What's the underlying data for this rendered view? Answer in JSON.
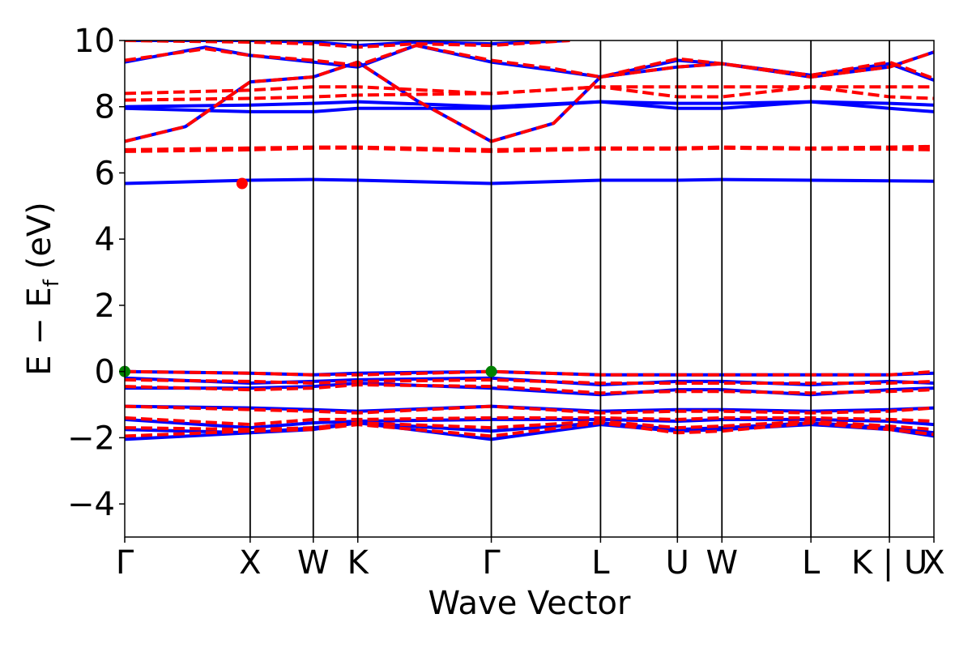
{
  "chart_data": {
    "type": "line",
    "title": "",
    "xlabel": "Wave Vector",
    "ylabel": "E − E",
    "ylabel_subscript": "f",
    "ylabel_unit": " (eV)",
    "ylim": [
      -5,
      10
    ],
    "yticks": [
      -4,
      -2,
      0,
      2,
      4,
      6,
      8,
      10
    ],
    "ytick_labels": [
      "−4",
      "−2",
      "0",
      "2",
      "4",
      "6",
      "8",
      "10"
    ],
    "xlim": [
      0,
      1
    ],
    "kpoints": [
      {
        "label": "Γ",
        "x": 0.0
      },
      {
        "label": "X",
        "x": 0.155
      },
      {
        "label": "W",
        "x": 0.233
      },
      {
        "label": "K",
        "x": 0.288
      },
      {
        "label": "Γ",
        "x": 0.453
      },
      {
        "label": "L",
        "x": 0.588
      },
      {
        "label": "U",
        "x": 0.683
      },
      {
        "label": "W",
        "x": 0.738
      },
      {
        "label": "L",
        "x": 0.848
      },
      {
        "label": "K | U",
        "x": 0.945
      },
      {
        "label": "X",
        "x": 1.0
      }
    ],
    "series": [
      {
        "style": "solid",
        "color": "#0000ff",
        "bands": [
          {
            "x": [
              0,
              0.155,
              0.233,
              0.288,
              0.453,
              0.588,
              0.683,
              0.738,
              0.848,
              0.945,
              1
            ],
            "y": [
              -2.05,
              -1.85,
              -1.7,
              -1.55,
              -2.05,
              -1.6,
              -1.8,
              -1.75,
              -1.6,
              -1.75,
              -1.95
            ]
          },
          {
            "x": [
              0,
              0.155,
              0.233,
              0.288,
              0.453,
              0.588,
              0.683,
              0.738,
              0.848,
              0.945,
              1
            ],
            "y": [
              -1.75,
              -1.85,
              -1.75,
              -1.55,
              -1.8,
              -1.55,
              -1.75,
              -1.7,
              -1.55,
              -1.7,
              -1.85
            ]
          },
          {
            "x": [
              0,
              0.155,
              0.233,
              0.288,
              0.453,
              0.588,
              0.683,
              0.738,
              0.848,
              0.945,
              1
            ],
            "y": [
              -1.45,
              -1.7,
              -1.55,
              -1.5,
              -1.45,
              -1.45,
              -1.5,
              -1.45,
              -1.45,
              -1.5,
              -1.6
            ]
          },
          {
            "x": [
              0,
              0.155,
              0.233,
              0.288,
              0.453,
              0.588,
              0.683,
              0.738,
              0.848,
              0.945,
              1
            ],
            "y": [
              -1.05,
              -1.1,
              -1.15,
              -1.2,
              -1.05,
              -1.2,
              -1.15,
              -1.15,
              -1.2,
              -1.15,
              -1.1
            ]
          },
          {
            "x": [
              0,
              0.155,
              0.233,
              0.288,
              0.453,
              0.588,
              0.683,
              0.738,
              0.848,
              0.945,
              1
            ],
            "y": [
              -0.5,
              -0.5,
              -0.45,
              -0.35,
              -0.5,
              -0.7,
              -0.55,
              -0.55,
              -0.7,
              -0.55,
              -0.5
            ]
          },
          {
            "x": [
              0,
              0.155,
              0.233,
              0.288,
              0.453,
              0.588,
              0.683,
              0.738,
              0.848,
              0.945,
              1
            ],
            "y": [
              -0.2,
              -0.35,
              -0.3,
              -0.25,
              -0.2,
              -0.4,
              -0.3,
              -0.3,
              -0.4,
              -0.3,
              -0.35
            ]
          },
          {
            "x": [
              0,
              0.155,
              0.233,
              0.288,
              0.453,
              0.588,
              0.683,
              0.738,
              0.848,
              0.945,
              1
            ],
            "y": [
              0.0,
              -0.05,
              -0.1,
              -0.05,
              0.0,
              -0.1,
              -0.1,
              -0.1,
              -0.1,
              -0.1,
              -0.05
            ]
          },
          {
            "x": [
              0,
              0.155,
              0.233,
              0.288,
              0.453,
              0.588,
              0.683,
              0.738,
              0.848,
              0.945,
              1
            ],
            "y": [
              5.68,
              5.78,
              5.8,
              5.78,
              5.68,
              5.78,
              5.78,
              5.8,
              5.78,
              5.76,
              5.75
            ]
          },
          {
            "x": [
              0,
              0.155,
              0.233,
              0.288,
              0.453,
              0.588,
              0.683,
              0.738,
              0.848,
              0.945,
              1
            ],
            "y": [
              7.95,
              7.85,
              7.85,
              7.95,
              7.95,
              8.15,
              7.95,
              7.95,
              8.15,
              7.95,
              7.85
            ]
          },
          {
            "x": [
              0,
              0.155,
              0.233,
              0.288,
              0.453,
              0.588,
              0.683,
              0.738,
              0.848,
              0.945,
              1
            ],
            "y": [
              8.0,
              8.05,
              8.1,
              8.15,
              8.0,
              8.15,
              8.1,
              8.1,
              8.15,
              8.1,
              8.05
            ]
          },
          {
            "x": [
              0,
              0.075,
              0.155,
              0.233,
              0.288,
              0.36,
              0.453,
              0.53,
              0.588,
              0.683,
              0.738,
              0.848,
              0.945,
              1
            ],
            "y": [
              6.95,
              7.4,
              8.75,
              8.9,
              9.35,
              8.2,
              6.95,
              7.5,
              8.9,
              9.2,
              9.3,
              8.9,
              9.2,
              9.65
            ]
          },
          {
            "x": [
              0,
              0.1,
              0.155,
              0.233,
              0.288,
              0.36,
              0.453,
              0.53,
              0.588,
              0.683,
              0.738,
              0.848,
              0.945,
              1
            ],
            "y": [
              9.35,
              9.8,
              9.55,
              9.35,
              9.2,
              9.85,
              9.35,
              9.1,
              8.9,
              9.4,
              9.3,
              8.95,
              9.3,
              8.8
            ]
          },
          {
            "x": [
              0,
              0.155,
              0.233,
              0.288,
              0.36,
              0.453,
              0.55
            ],
            "y": [
              10.0,
              10.0,
              9.95,
              9.85,
              9.95,
              9.9,
              10.0
            ]
          }
        ]
      },
      {
        "style": "dashed",
        "color": "#ff0000",
        "bands": [
          {
            "x": [
              0,
              0.155,
              0.233,
              0.288,
              0.453,
              0.588,
              0.683,
              0.738,
              0.848,
              0.945,
              1
            ],
            "y": [
              -1.95,
              -1.8,
              -1.75,
              -1.6,
              -1.95,
              -1.55,
              -1.85,
              -1.8,
              -1.55,
              -1.75,
              -1.9
            ]
          },
          {
            "x": [
              0,
              0.155,
              0.233,
              0.288,
              0.453,
              0.588,
              0.683,
              0.738,
              0.848,
              0.945,
              1
            ],
            "y": [
              -1.7,
              -1.75,
              -1.7,
              -1.55,
              -1.7,
              -1.5,
              -1.7,
              -1.65,
              -1.5,
              -1.65,
              -1.75
            ]
          },
          {
            "x": [
              0,
              0.155,
              0.233,
              0.288,
              0.453,
              0.588,
              0.683,
              0.738,
              0.848,
              0.945,
              1
            ],
            "y": [
              -1.4,
              -1.6,
              -1.45,
              -1.45,
              -1.4,
              -1.4,
              -1.45,
              -1.4,
              -1.4,
              -1.45,
              -1.5
            ]
          },
          {
            "x": [
              0,
              0.155,
              0.233,
              0.288,
              0.453,
              0.588,
              0.683,
              0.738,
              0.848,
              0.945,
              1
            ],
            "y": [
              -1.05,
              -1.15,
              -1.2,
              -1.25,
              -1.05,
              -1.25,
              -1.2,
              -1.2,
              -1.25,
              -1.2,
              -1.1
            ]
          },
          {
            "x": [
              0,
              0.155,
              0.233,
              0.288,
              0.453,
              0.588,
              0.683,
              0.738,
              0.848,
              0.945,
              1
            ],
            "y": [
              -0.45,
              -0.55,
              -0.5,
              -0.4,
              -0.45,
              -0.65,
              -0.6,
              -0.6,
              -0.65,
              -0.6,
              -0.55
            ]
          },
          {
            "x": [
              0,
              0.155,
              0.233,
              0.288,
              0.453,
              0.588,
              0.683,
              0.738,
              0.848,
              0.945,
              1
            ],
            "y": [
              -0.25,
              -0.3,
              -0.35,
              -0.3,
              -0.25,
              -0.35,
              -0.35,
              -0.35,
              -0.35,
              -0.35,
              -0.3
            ]
          },
          {
            "x": [
              0,
              0.155,
              0.233,
              0.288,
              0.453,
              0.588,
              0.683,
              0.738,
              0.848,
              0.945,
              1
            ],
            "y": [
              0.0,
              -0.05,
              -0.1,
              -0.1,
              0.0,
              -0.1,
              -0.1,
              -0.1,
              -0.1,
              -0.1,
              0.0
            ]
          },
          {
            "x": [
              0,
              0.155,
              0.233,
              0.288,
              0.453,
              0.588,
              0.683,
              0.738,
              0.848,
              0.945,
              1
            ],
            "y": [
              6.65,
              6.7,
              6.75,
              6.75,
              6.65,
              6.72,
              6.72,
              6.75,
              6.72,
              6.72,
              6.7
            ]
          },
          {
            "x": [
              0,
              0.155,
              0.233,
              0.288,
              0.453,
              0.588,
              0.683,
              0.738,
              0.848,
              0.945,
              1
            ],
            "y": [
              6.7,
              6.75,
              6.78,
              6.78,
              6.7,
              6.75,
              6.75,
              6.78,
              6.75,
              6.78,
              6.8
            ]
          },
          {
            "x": [
              0,
              0.155,
              0.233,
              0.288,
              0.453,
              0.588,
              0.683,
              0.738,
              0.848,
              0.945,
              1
            ],
            "y": [
              8.2,
              8.25,
              8.3,
              8.35,
              8.4,
              8.6,
              8.3,
              8.3,
              8.6,
              8.3,
              8.25
            ]
          },
          {
            "x": [
              0,
              0.155,
              0.233,
              0.288,
              0.453,
              0.588,
              0.683,
              0.738,
              0.848,
              0.945,
              1
            ],
            "y": [
              8.4,
              8.5,
              8.6,
              8.6,
              8.4,
              8.6,
              8.6,
              8.6,
              8.6,
              8.6,
              8.6
            ]
          },
          {
            "x": [
              0,
              0.075,
              0.155,
              0.233,
              0.288,
              0.36,
              0.453,
              0.53,
              0.588,
              0.683,
              0.738,
              0.848,
              0.945,
              1
            ],
            "y": [
              6.95,
              7.4,
              8.75,
              8.9,
              9.35,
              8.2,
              6.95,
              7.5,
              8.9,
              9.2,
              9.3,
              8.9,
              9.2,
              9.65
            ]
          },
          {
            "x": [
              0,
              0.1,
              0.155,
              0.233,
              0.288,
              0.36,
              0.453,
              0.53,
              0.588,
              0.683,
              0.738,
              0.848,
              0.945,
              1
            ],
            "y": [
              9.4,
              9.75,
              9.55,
              9.4,
              9.25,
              9.85,
              9.4,
              9.15,
              8.9,
              9.45,
              9.3,
              8.95,
              9.35,
              8.85
            ]
          },
          {
            "x": [
              0,
              0.155,
              0.233,
              0.288,
              0.36,
              0.453,
              0.55
            ],
            "y": [
              10.0,
              9.95,
              9.9,
              9.8,
              9.9,
              9.85,
              10.0
            ]
          }
        ]
      }
    ],
    "markers": [
      {
        "x": 0.0,
        "y": 0.0,
        "color": "#008000"
      },
      {
        "x": 0.453,
        "y": 0.0,
        "color": "#008000"
      },
      {
        "x": 0.145,
        "y": 5.68,
        "color": "#ff0000"
      }
    ],
    "grid": false,
    "legend": "none"
  }
}
